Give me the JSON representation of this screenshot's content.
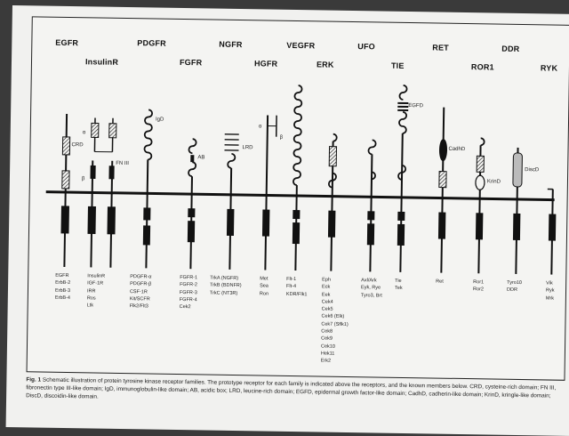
{
  "families": [
    {
      "name": "EGFR",
      "members": [
        "EGFR",
        "ErbB-2",
        "ErbB-3",
        "ErbB-4"
      ]
    },
    {
      "name": "InsulinR",
      "members": [
        "InsulinR",
        "IGF-1R",
        "IRR",
        "Ros",
        "Ltk"
      ]
    },
    {
      "name": "PDGFR",
      "members": [
        "PDGFR-α",
        "PDGFR-β",
        "CSF-1R",
        "Kit/SCFR",
        "Flk2/Flt3"
      ]
    },
    {
      "name": "FGFR",
      "members": [
        "FGFR-1",
        "FGFR-2",
        "FGFR-3",
        "FGFR-4",
        "Cek2"
      ]
    },
    {
      "name": "NGFR",
      "members": [
        "TrkA (NGFR)",
        "TrkB (BDNFR)",
        "TrkC (NT3R)"
      ]
    },
    {
      "name": "HGFR",
      "members": [
        "Met",
        "Sea",
        "Ron"
      ]
    },
    {
      "name": "VEGFR",
      "members": [
        "Flt-1",
        "Flt-4",
        "KDR/Flk1"
      ]
    },
    {
      "name": "ERK",
      "members": [
        "Eph",
        "Eck",
        "Eek",
        "Cek4",
        "Cek5",
        "Cek6 (Elk)",
        "Cek7 (Sflk1)",
        "Cek8",
        "Cek9",
        "Cek10",
        "Hek11",
        "Erk2"
      ]
    },
    {
      "name": "UFO",
      "members": [
        "Axl/Ark",
        "Eyk, Rye",
        "Tyro3, Brt"
      ]
    },
    {
      "name": "TIE",
      "members": [
        "Tie",
        "Tek"
      ]
    },
    {
      "name": "RET",
      "members": [
        "Ret"
      ]
    },
    {
      "name": "ROR1",
      "members": [
        "Ror1",
        "Ror2"
      ]
    },
    {
      "name": "DDR",
      "members": [
        "Tyro10",
        "DDR"
      ]
    },
    {
      "name": "RYK",
      "members": [
        "Vik",
        "Ryk",
        "Mrk"
      ]
    }
  ],
  "domain_labels": {
    "crd": "CRD",
    "fn3": "FN III",
    "igd": "IgD",
    "ab": "AB",
    "lrd": "LRD",
    "egfd": "EGFD",
    "cadhd": "CadhD",
    "krind": "KrinD",
    "discd": "DiscD",
    "alpha": "α",
    "beta": "β"
  },
  "caption": {
    "title": "Fig. 1",
    "text": "Schematic illustration of protein tyrosine kinase receptor families. The prototype receptor for each family is indicated above the receptors, and the known members below. CRD, cysteine-rich domain; FN III, fibronectin type III-like domain; IgD, immunoglobulin-like domain; AB, acidic box; LRD, leucine-rich domain; EGFD, epidermal growth factor-like domain; CadhD, cadherin-like domain; KrinD, kringle-like domain; DiscD, discoidin-like domain."
  }
}
